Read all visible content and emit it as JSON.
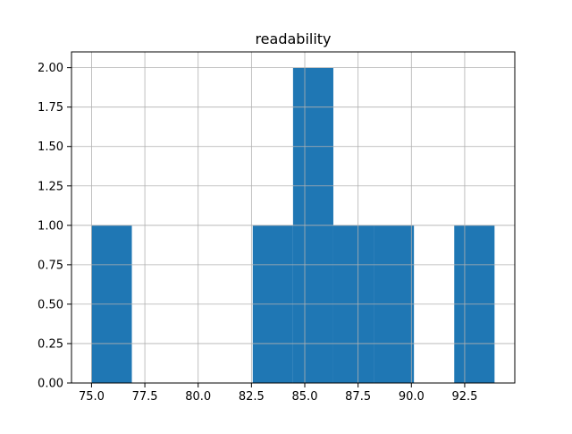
{
  "chart_data": {
    "type": "bar",
    "title": "readability",
    "xlabel": "",
    "ylabel": "",
    "bins": [
      {
        "x0": 75.0,
        "x1": 76.89,
        "count": 1
      },
      {
        "x0": 76.89,
        "x1": 78.78,
        "count": 0
      },
      {
        "x0": 78.78,
        "x1": 80.67,
        "count": 0
      },
      {
        "x0": 80.67,
        "x1": 82.56,
        "count": 0
      },
      {
        "x0": 82.56,
        "x1": 84.45,
        "count": 1
      },
      {
        "x0": 84.45,
        "x1": 86.34,
        "count": 2
      },
      {
        "x0": 86.34,
        "x1": 88.23,
        "count": 1
      },
      {
        "x0": 88.23,
        "x1": 90.12,
        "count": 1
      },
      {
        "x0": 90.12,
        "x1": 92.01,
        "count": 0
      },
      {
        "x0": 92.01,
        "x1": 93.9,
        "count": 1
      }
    ],
    "xlim": [
      74.06,
      94.85
    ],
    "ylim": [
      0,
      2.1
    ],
    "xticks": [
      75.0,
      77.5,
      80.0,
      82.5,
      85.0,
      87.5,
      90.0,
      92.5
    ],
    "xtick_labels": [
      "75.0",
      "77.5",
      "80.0",
      "82.5",
      "85.0",
      "87.5",
      "90.0",
      "92.5"
    ],
    "yticks": [
      0,
      0.25,
      0.5,
      0.75,
      1.0,
      1.25,
      1.5,
      1.75,
      2.0
    ],
    "ytick_labels": [
      "0.00",
      "0.25",
      "0.50",
      "0.75",
      "1.00",
      "1.25",
      "1.50",
      "1.75",
      "2.00"
    ],
    "grid": true,
    "bar_color": "#1f77b4",
    "grid_color": "#b0b0b0"
  }
}
